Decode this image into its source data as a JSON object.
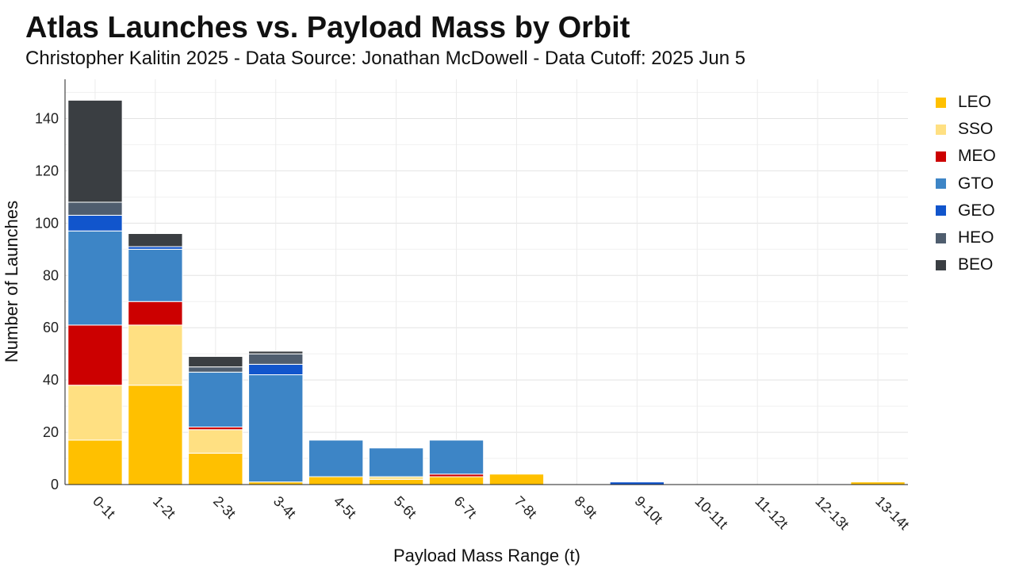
{
  "chart_data": {
    "type": "bar",
    "stacked": true,
    "title": "Atlas Launches vs. Payload Mass by Orbit",
    "subtitle": "Christopher Kalitin 2025 - Data Source: Jonathan McDowell - Data Cutoff: 2025 Jun 5",
    "xlabel": "Payload Mass Range (t)",
    "ylabel": "Number of Launches",
    "ylim": [
      0,
      155
    ],
    "yticks": [
      0,
      20,
      40,
      60,
      80,
      100,
      120,
      140
    ],
    "grid": true,
    "legend_position": "right",
    "categories": [
      "0-1t",
      "1-2t",
      "2-3t",
      "3-4t",
      "4-5t",
      "5-6t",
      "6-7t",
      "7-8t",
      "8-9t",
      "9-10t",
      "10-11t",
      "11-12t",
      "12-13t",
      "13-14t"
    ],
    "series": [
      {
        "name": "LEO",
        "color": "#FFC000",
        "values": [
          17,
          38,
          12,
          1,
          3,
          2,
          3,
          4,
          0,
          0,
          0,
          0,
          0,
          1
        ]
      },
      {
        "name": "SSO",
        "color": "#FFE082",
        "values": [
          21,
          23,
          9,
          0,
          0,
          1,
          0,
          0,
          0,
          0,
          0,
          0,
          0,
          0
        ]
      },
      {
        "name": "MEO",
        "color": "#CC0000",
        "values": [
          23,
          9,
          1,
          0,
          0,
          0,
          1,
          0,
          0,
          0,
          0,
          0,
          0,
          0
        ]
      },
      {
        "name": "GTO",
        "color": "#3D85C6",
        "values": [
          36,
          20,
          21,
          41,
          14,
          11,
          13,
          0,
          0,
          0,
          0,
          0,
          0,
          0
        ]
      },
      {
        "name": "GEO",
        "color": "#1155CC",
        "values": [
          6,
          1,
          0,
          4,
          0,
          0,
          0,
          0,
          0,
          1,
          0,
          0,
          0,
          0
        ]
      },
      {
        "name": "HEO",
        "color": "#4F5D6E",
        "values": [
          5,
          0,
          2,
          4,
          0,
          0,
          0,
          0,
          0,
          0,
          0,
          0,
          0,
          0
        ]
      },
      {
        "name": "BEO",
        "color": "#3A3E42",
        "values": [
          39,
          5,
          4,
          1,
          0,
          0,
          0,
          0,
          0,
          0,
          0,
          0,
          0,
          0
        ]
      }
    ]
  }
}
